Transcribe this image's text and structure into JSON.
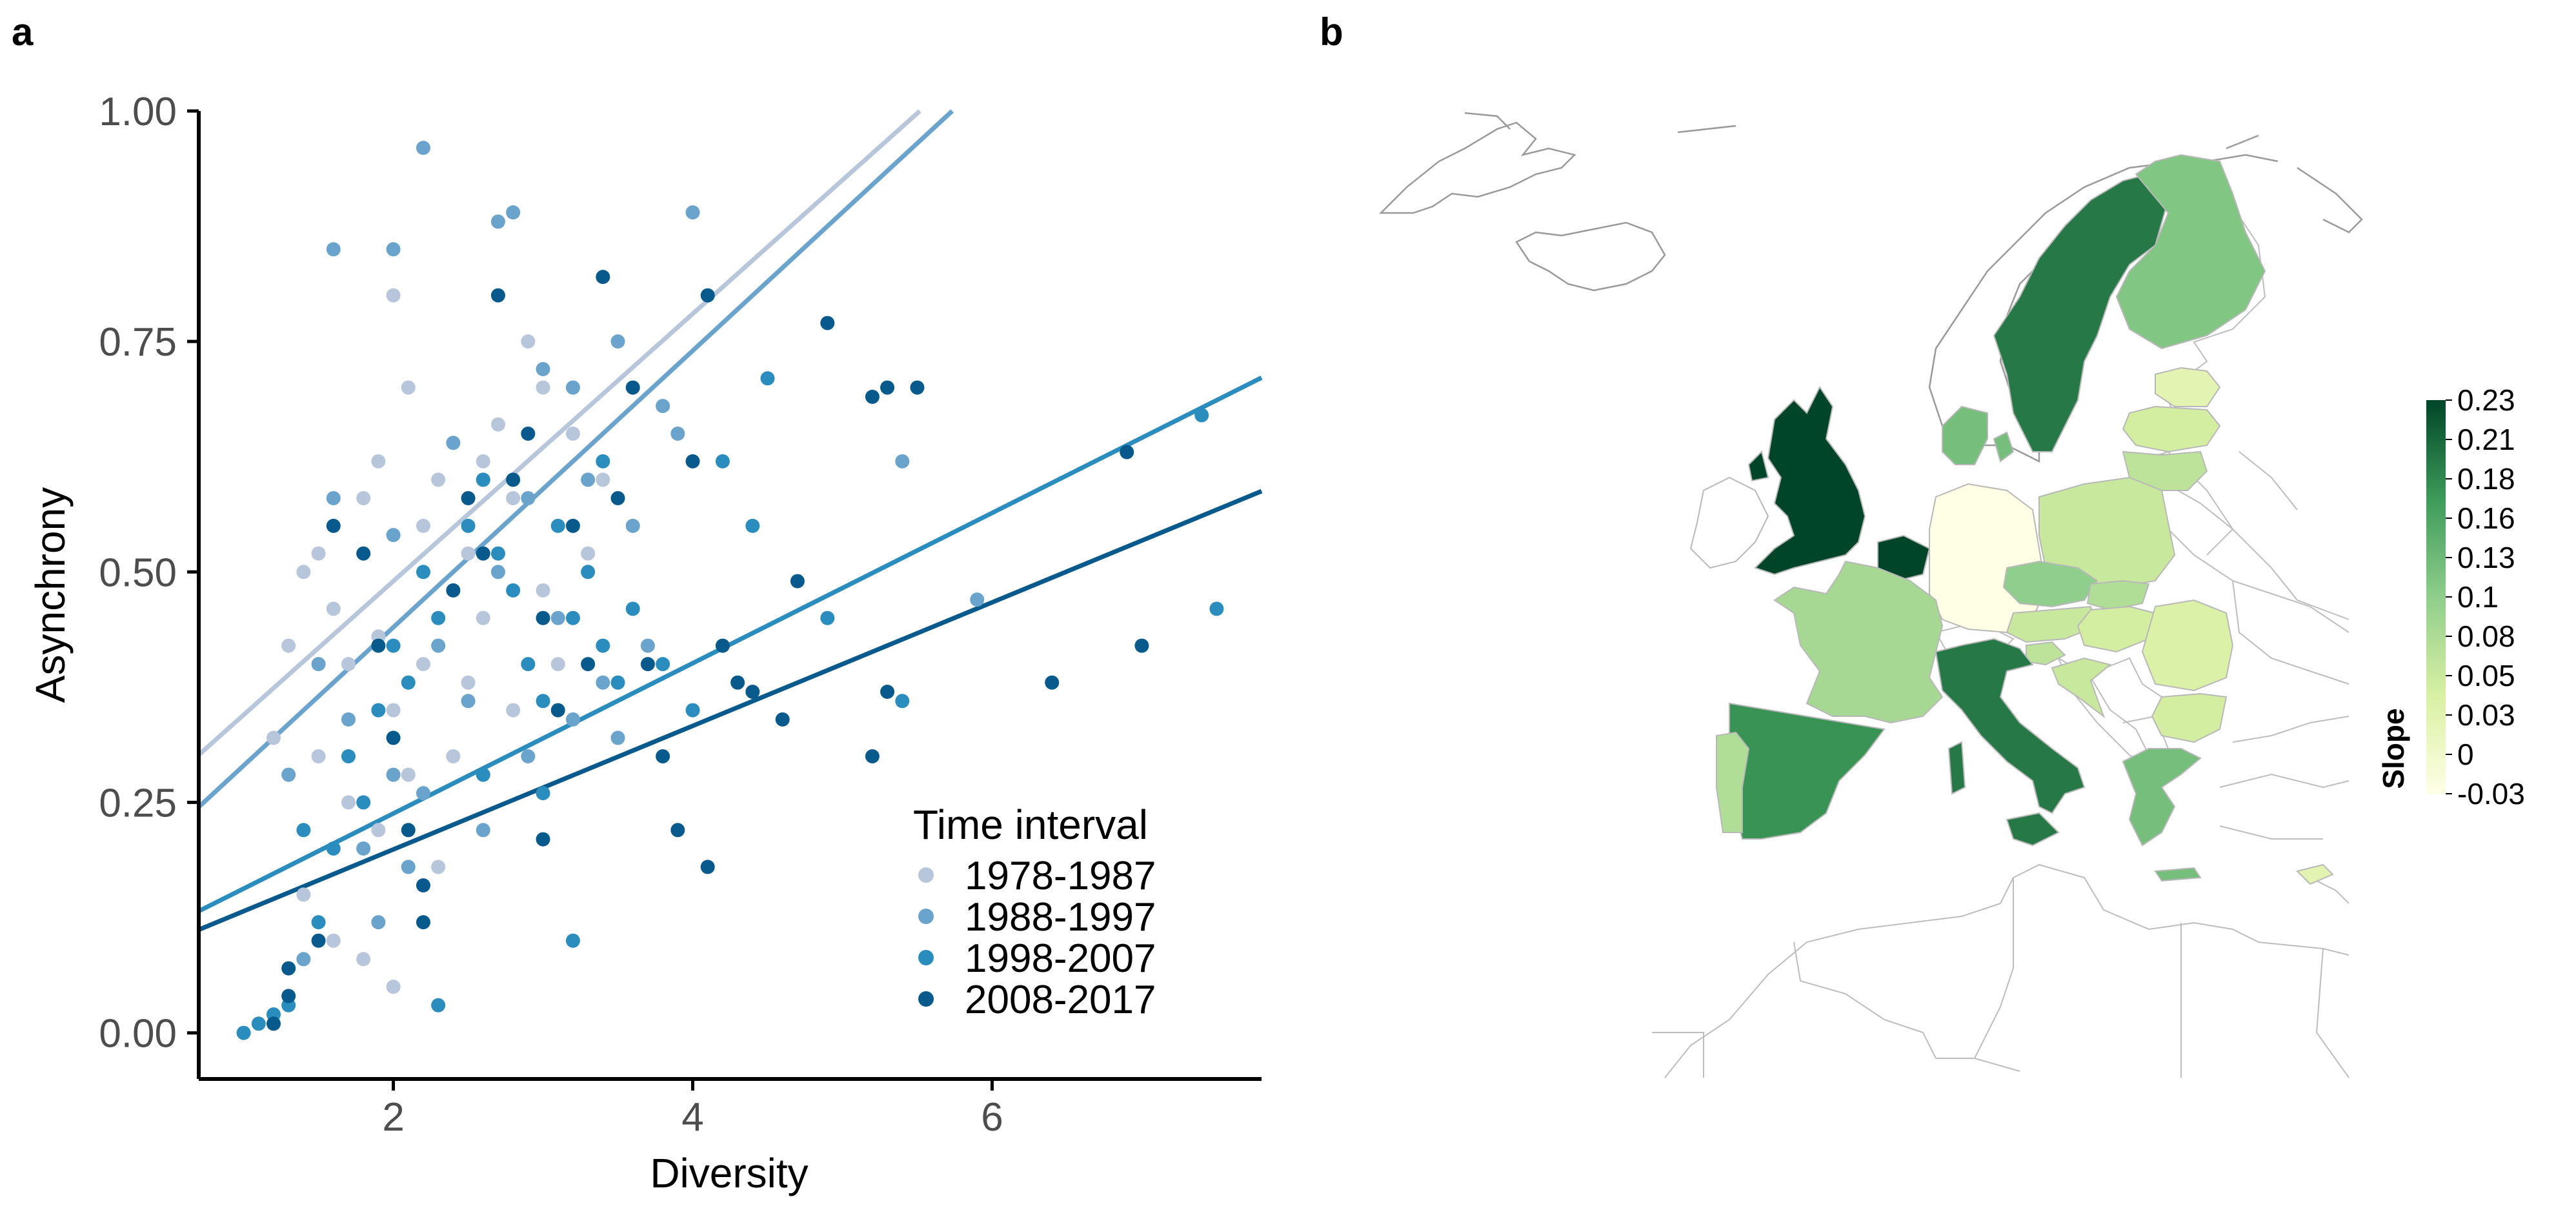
{
  "panels": {
    "a_label": "a",
    "b_label": "b"
  },
  "colors": {
    "1978-1987": "#b8c6dc",
    "1988-1997": "#6aa3cc",
    "1998-2007": "#2b8cbe",
    "2008-2017": "#08598c",
    "cb_low": "#ffffe5",
    "cb_high": "#004529"
  },
  "chart_data": [
    {
      "type": "scatter",
      "panel": "a",
      "title": "",
      "xlabel": "Diversity",
      "ylabel": "Asynchrony",
      "xlim": [
        0.7,
        7.8
      ],
      "ylim": [
        -0.05,
        1.0
      ],
      "xticks": [
        "2",
        "4",
        "6"
      ],
      "yticks": [
        "0.00",
        "0.25",
        "0.50",
        "0.75",
        "1.00"
      ],
      "grid": false,
      "legend": {
        "title": "Time interval",
        "position": "bottom-right"
      },
      "series": [
        {
          "name": "1978-1987",
          "fit": {
            "intercept": 0.2,
            "slope": 0.145
          },
          "points": [
            [
              1.3,
              0.42
            ],
            [
              1.4,
              0.5
            ],
            [
              1.5,
              0.52
            ],
            [
              1.6,
              0.46
            ],
            [
              1.7,
              0.4
            ],
            [
              1.8,
              0.58
            ],
            [
              1.9,
              0.62
            ],
            [
              2.0,
              0.8
            ],
            [
              2.1,
              0.7
            ],
            [
              2.2,
              0.55
            ],
            [
              2.3,
              0.6
            ],
            [
              2.4,
              0.48
            ],
            [
              2.5,
              0.52
            ],
            [
              2.6,
              0.62
            ],
            [
              2.7,
              0.66
            ],
            [
              2.8,
              0.58
            ],
            [
              2.9,
              0.75
            ],
            [
              3.0,
              0.7
            ],
            [
              3.2,
              0.65
            ],
            [
              3.4,
              0.6
            ],
            [
              1.5,
              0.3
            ],
            [
              1.7,
              0.25
            ],
            [
              1.9,
              0.22
            ],
            [
              2.0,
              0.35
            ],
            [
              2.2,
              0.4
            ],
            [
              2.4,
              0.3
            ],
            [
              1.4,
              0.15
            ],
            [
              1.6,
              0.1
            ],
            [
              1.8,
              0.08
            ],
            [
              2.0,
              0.05
            ],
            [
              2.6,
              0.45
            ],
            [
              2.8,
              0.35
            ],
            [
              3.1,
              0.4
            ],
            [
              1.2,
              0.32
            ],
            [
              2.3,
              0.18
            ],
            [
              1.9,
              0.43
            ],
            [
              2.1,
              0.28
            ],
            [
              2.5,
              0.38
            ],
            [
              3.0,
              0.48
            ],
            [
              3.3,
              0.52
            ]
          ]
        },
        {
          "name": "1988-1997",
          "fit": {
            "intercept": 0.14,
            "slope": 0.15
          },
          "points": [
            [
              1.6,
              0.85
            ],
            [
              2.0,
              0.85
            ],
            [
              2.2,
              0.96
            ],
            [
              2.7,
              0.88
            ],
            [
              2.8,
              0.89
            ],
            [
              4.0,
              0.89
            ],
            [
              3.0,
              0.72
            ],
            [
              3.2,
              0.7
            ],
            [
              3.5,
              0.75
            ],
            [
              3.8,
              0.68
            ],
            [
              3.9,
              0.65
            ],
            [
              2.4,
              0.64
            ],
            [
              2.6,
              0.6
            ],
            [
              2.9,
              0.58
            ],
            [
              3.3,
              0.6
            ],
            [
              3.6,
              0.55
            ],
            [
              5.4,
              0.62
            ],
            [
              5.9,
              0.47
            ],
            [
              1.5,
              0.4
            ],
            [
              1.7,
              0.34
            ],
            [
              2.0,
              0.28
            ],
            [
              2.3,
              0.42
            ],
            [
              2.7,
              0.5
            ],
            [
              3.1,
              0.45
            ],
            [
              3.4,
              0.38
            ],
            [
              3.7,
              0.42
            ],
            [
              1.3,
              0.28
            ],
            [
              1.8,
              0.2
            ],
            [
              2.1,
              0.18
            ],
            [
              2.5,
              0.36
            ],
            [
              2.9,
              0.3
            ],
            [
              3.2,
              0.34
            ],
            [
              1.4,
              0.08
            ],
            [
              1.9,
              0.12
            ],
            [
              2.2,
              0.26
            ],
            [
              2.6,
              0.22
            ],
            [
              3.5,
              0.32
            ],
            [
              1.6,
              0.58
            ],
            [
              2.0,
              0.54
            ]
          ]
        },
        {
          "name": "1998-2007",
          "fit": {
            "intercept": 0.075,
            "slope": 0.0815
          },
          "points": [
            [
              1.0,
              0.0
            ],
            [
              1.1,
              0.01
            ],
            [
              1.2,
              0.02
            ],
            [
              1.3,
              0.03
            ],
            [
              1.5,
              0.12
            ],
            [
              1.6,
              0.2
            ],
            [
              1.7,
              0.3
            ],
            [
              1.8,
              0.25
            ],
            [
              1.9,
              0.35
            ],
            [
              2.0,
              0.42
            ],
            [
              2.1,
              0.38
            ],
            [
              2.2,
              0.5
            ],
            [
              2.3,
              0.45
            ],
            [
              2.5,
              0.55
            ],
            [
              2.6,
              0.6
            ],
            [
              2.7,
              0.52
            ],
            [
              2.8,
              0.48
            ],
            [
              2.9,
              0.4
            ],
            [
              3.0,
              0.36
            ],
            [
              3.1,
              0.55
            ],
            [
              3.2,
              0.45
            ],
            [
              3.3,
              0.5
            ],
            [
              3.4,
              0.42
            ],
            [
              3.5,
              0.38
            ],
            [
              3.6,
              0.46
            ],
            [
              3.8,
              0.4
            ],
            [
              4.0,
              0.35
            ],
            [
              4.2,
              0.62
            ],
            [
              4.4,
              0.55
            ],
            [
              4.5,
              0.71
            ],
            [
              4.9,
              0.45
            ],
            [
              5.4,
              0.36
            ],
            [
              7.4,
              0.67
            ],
            [
              7.5,
              0.46
            ],
            [
              3.2,
              0.1
            ],
            [
              2.3,
              0.03
            ],
            [
              2.6,
              0.28
            ],
            [
              3.0,
              0.26
            ],
            [
              3.4,
              0.62
            ],
            [
              1.4,
              0.22
            ]
          ]
        },
        {
          "name": "2008-2017",
          "fit": {
            "intercept": 0.065,
            "slope": 0.067
          },
          "points": [
            [
              1.2,
              0.01
            ],
            [
              1.3,
              0.04
            ],
            [
              1.5,
              0.1
            ],
            [
              1.6,
              0.55
            ],
            [
              1.8,
              0.52
            ],
            [
              1.9,
              0.42
            ],
            [
              2.0,
              0.32
            ],
            [
              2.1,
              0.22
            ],
            [
              2.2,
              0.16
            ],
            [
              2.4,
              0.48
            ],
            [
              2.5,
              0.58
            ],
            [
              2.6,
              0.52
            ],
            [
              2.7,
              0.8
            ],
            [
              2.8,
              0.6
            ],
            [
              2.9,
              0.65
            ],
            [
              3.0,
              0.45
            ],
            [
              3.1,
              0.35
            ],
            [
              3.2,
              0.55
            ],
            [
              3.3,
              0.4
            ],
            [
              3.4,
              0.82
            ],
            [
              3.5,
              0.58
            ],
            [
              3.6,
              0.7
            ],
            [
              3.7,
              0.4
            ],
            [
              3.8,
              0.3
            ],
            [
              3.9,
              0.22
            ],
            [
              4.0,
              0.62
            ],
            [
              4.1,
              0.8
            ],
            [
              4.2,
              0.42
            ],
            [
              4.3,
              0.38
            ],
            [
              4.4,
              0.37
            ],
            [
              4.6,
              0.34
            ],
            [
              4.7,
              0.49
            ],
            [
              4.9,
              0.77
            ],
            [
              5.2,
              0.69
            ],
            [
              5.3,
              0.7
            ],
            [
              5.5,
              0.7
            ],
            [
              5.2,
              0.3
            ],
            [
              5.3,
              0.37
            ],
            [
              6.4,
              0.38
            ],
            [
              6.9,
              0.63
            ],
            [
              7.0,
              0.42
            ],
            [
              4.1,
              0.18
            ],
            [
              3.0,
              0.21
            ],
            [
              2.2,
              0.12
            ],
            [
              1.3,
              0.07
            ]
          ]
        }
      ]
    },
    {
      "type": "heatmap",
      "panel": "b",
      "title": "",
      "legend": {
        "title": "Slope",
        "position": "right",
        "ticks": [
          "0.23",
          "0.21",
          "0.18",
          "0.16",
          "0.13",
          "0.1",
          "0.08",
          "0.05",
          "0.03",
          "0",
          "-0.03"
        ],
        "range": [
          -0.03,
          0.23
        ]
      },
      "regions": [
        {
          "name": "United Kingdom",
          "value": 0.23
        },
        {
          "name": "Belgium",
          "value": 0.23
        },
        {
          "name": "Sweden",
          "value": 0.19
        },
        {
          "name": "Italy",
          "value": 0.19
        },
        {
          "name": "Spain",
          "value": 0.17
        },
        {
          "name": "Denmark",
          "value": 0.12
        },
        {
          "name": "Finland",
          "value": 0.11
        },
        {
          "name": "Greece",
          "value": 0.12
        },
        {
          "name": "France",
          "value": 0.08
        },
        {
          "name": "Czechia",
          "value": 0.1
        },
        {
          "name": "Portugal",
          "value": 0.07
        },
        {
          "name": "Poland",
          "value": 0.05
        },
        {
          "name": "Lithuania",
          "value": 0.06
        },
        {
          "name": "Latvia",
          "value": 0.04
        },
        {
          "name": "Estonia",
          "value": 0.02
        },
        {
          "name": "Austria",
          "value": 0.05
        },
        {
          "name": "Hungary",
          "value": 0.04
        },
        {
          "name": "Slovakia",
          "value": 0.07
        },
        {
          "name": "Romania",
          "value": 0.03
        },
        {
          "name": "Bulgaria",
          "value": 0.04
        },
        {
          "name": "Slovenia",
          "value": 0.06
        },
        {
          "name": "Croatia",
          "value": 0.05
        },
        {
          "name": "Cyprus",
          "value": 0.02
        },
        {
          "name": "Germany",
          "value": -0.03
        }
      ]
    }
  ]
}
